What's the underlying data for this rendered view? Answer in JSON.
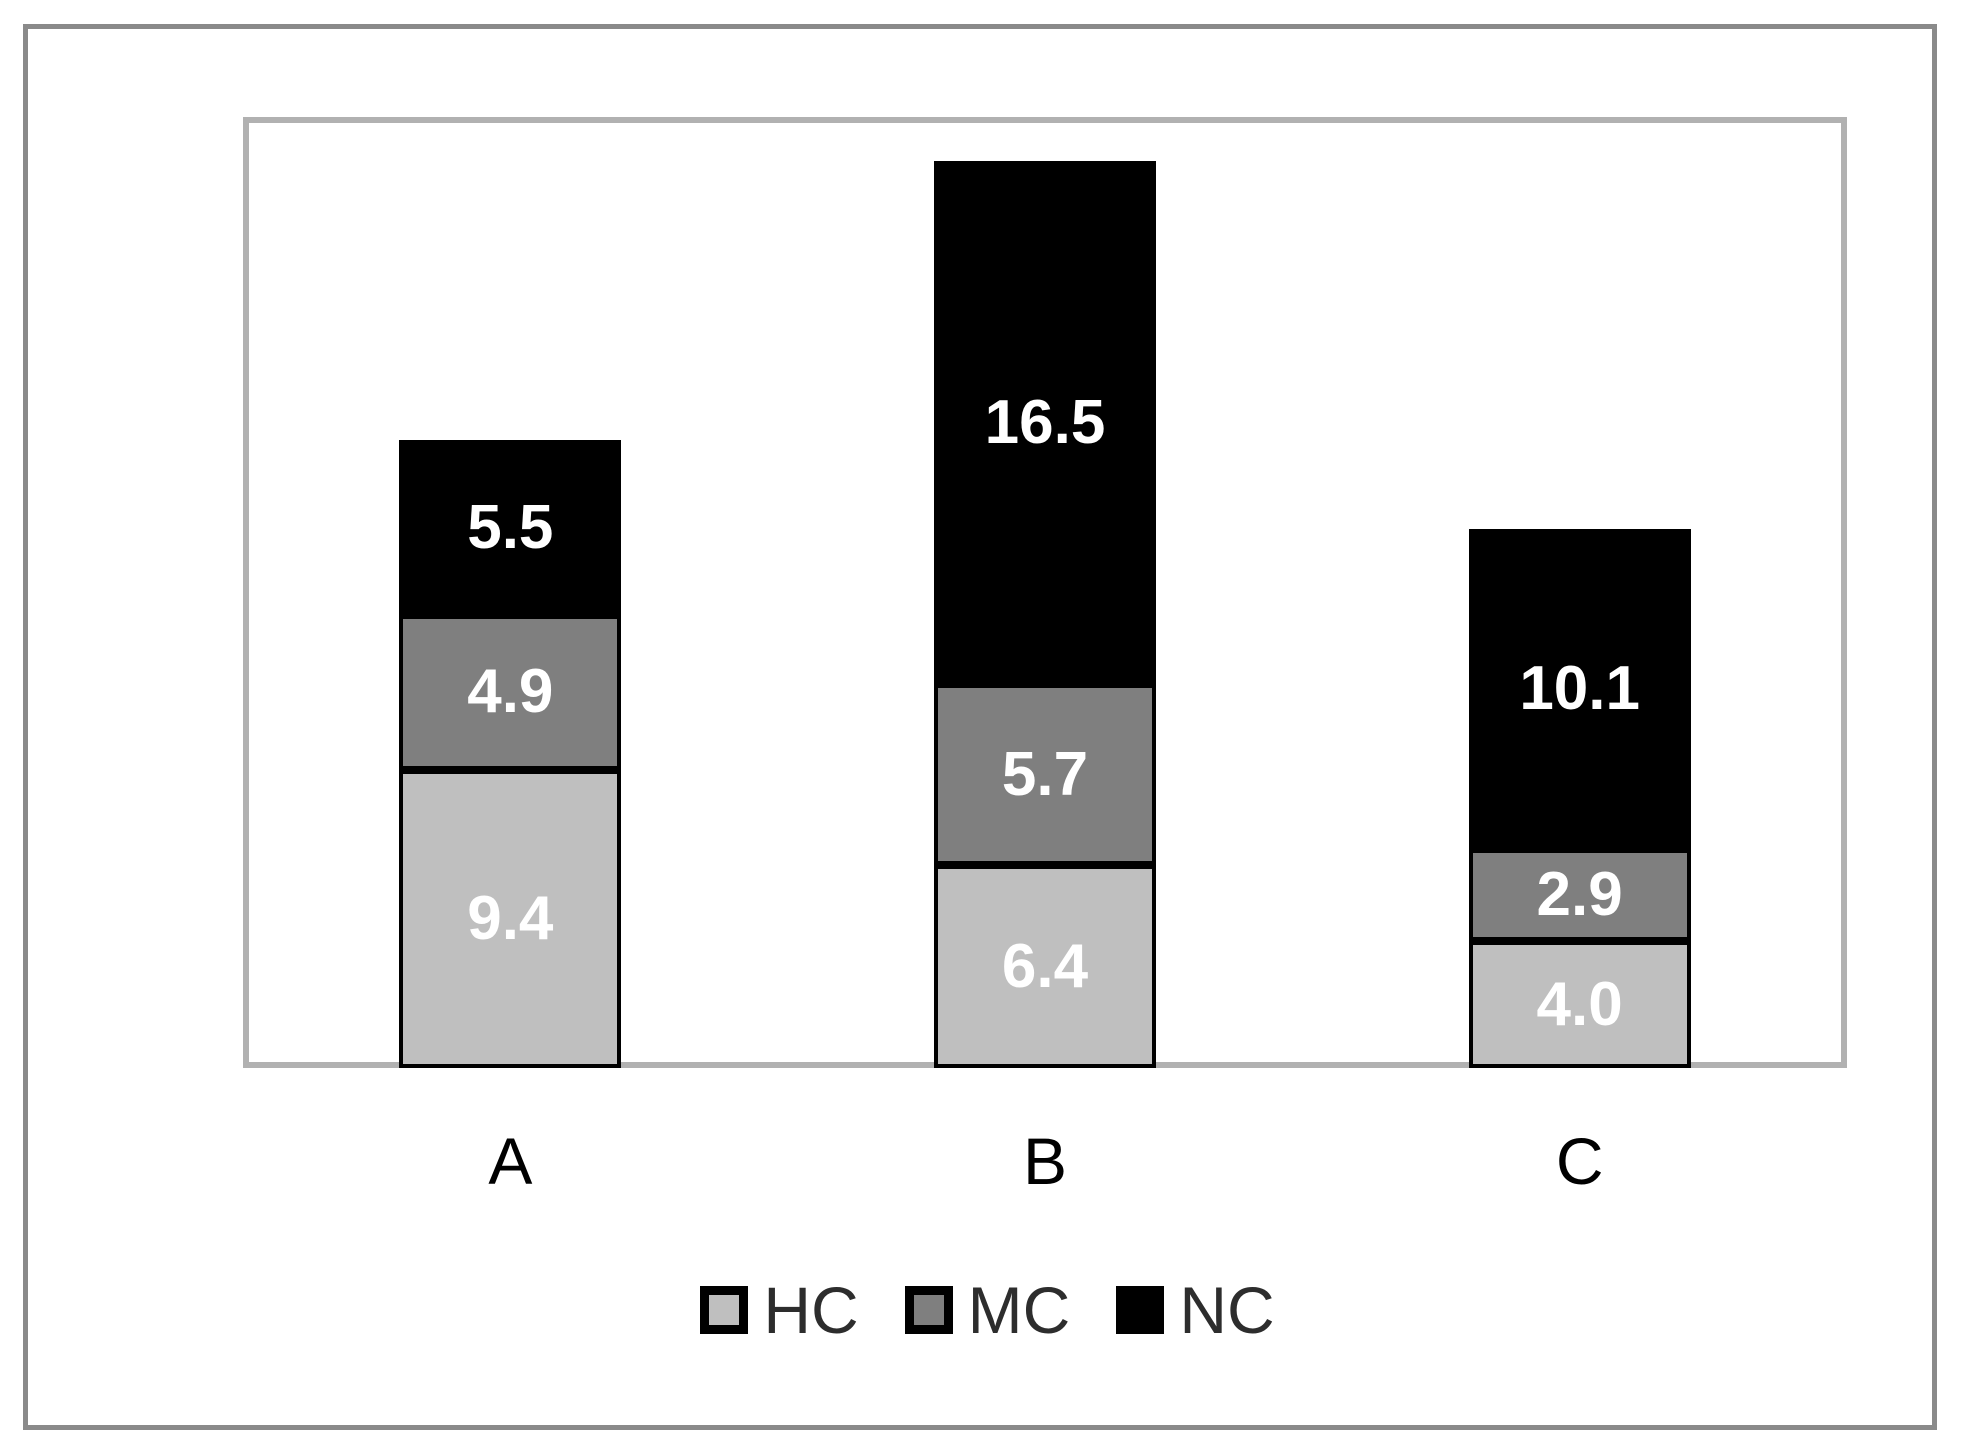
{
  "chart_data": {
    "type": "bar",
    "stacked": true,
    "title": "",
    "xlabel": "",
    "ylabel": "",
    "ylim": [
      0,
      30
    ],
    "grid": false,
    "axes_labels_visible": false,
    "legend_position": "bottom-center",
    "categories": [
      "A",
      "B",
      "C"
    ],
    "series": [
      {
        "name": "HC",
        "color": "#bfbfbf",
        "values": [
          9.4,
          6.4,
          4.0
        ],
        "labels": [
          "9.4",
          "6.4",
          "4.0"
        ]
      },
      {
        "name": "MC",
        "color": "#7f7f7f",
        "values": [
          4.9,
          5.7,
          2.9
        ],
        "labels": [
          "4.9",
          "5.7",
          "2.9"
        ]
      },
      {
        "name": "NC",
        "color": "#000000",
        "values": [
          5.5,
          16.5,
          10.1
        ],
        "labels": [
          "5.5",
          "16.5",
          "10.1"
        ]
      }
    ],
    "value_label_color": "#ffffff",
    "segment_border_color": "#000000",
    "figure_border_color": "#8a8a8a",
    "plot_border_color": "#b1b1b1",
    "category_label_color": "#000000",
    "legend_text_color": "#2d2d2d"
  }
}
